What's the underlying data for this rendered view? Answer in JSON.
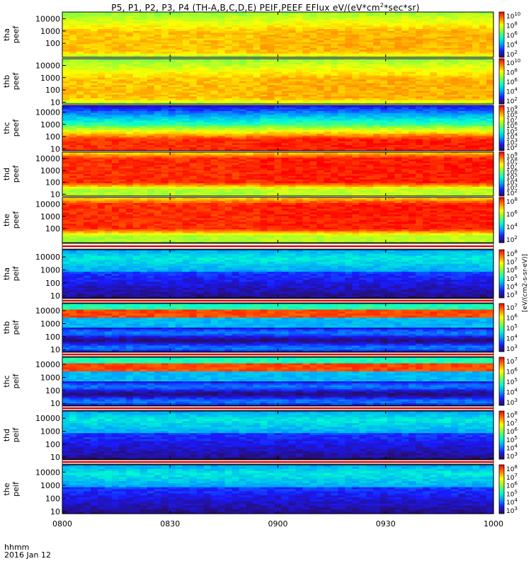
{
  "title_prefix": "P5, P1, P2, P3, P4 (TH-A,B,C,D,E) PEIF,PEEF EFlux eV/(eV*cm",
  "title_suffix": "*sec*sr)",
  "title_sup": "2",
  "chart_data": {
    "type": "heatmap",
    "x_ticks": [
      "0800",
      "0830",
      "0900",
      "0930",
      "1000"
    ],
    "x_range": [
      "08:00",
      "10:00"
    ],
    "x_axis_label": "hhmm",
    "date_label": "2016 Jan 12",
    "colorbar_label": "[eV/(cm2-s-sr-eV)]",
    "colormap": [
      "#2b0b50",
      "#1a1aff",
      "#00a0ff",
      "#00ffd0",
      "#80ff40",
      "#ffff00",
      "#ff8000",
      "#ff0000"
    ],
    "panels": [
      {
        "probe": "tha",
        "species": "peef",
        "y_ticks": [
          "10000",
          "1000",
          "100"
        ],
        "y_scale": "log",
        "cb_ticks": [
          "10^10",
          "10^8",
          "10^6",
          "10^4",
          "10^2"
        ],
        "intensity_profile": "electron-low"
      },
      {
        "probe": "thb",
        "species": "peef",
        "y_ticks": [
          "10000",
          "1000",
          "100",
          "10"
        ],
        "y_scale": "log",
        "cb_ticks": [
          "10^10",
          "10^8",
          "10^6",
          "10^4",
          "10^2"
        ],
        "intensity_profile": "electron-low"
      },
      {
        "probe": "thc",
        "species": "peef",
        "y_ticks": [
          "10000",
          "1000",
          "100",
          "10"
        ],
        "y_scale": "log",
        "cb_ticks": [
          "10^9",
          "10^8",
          "10^7",
          "10^6",
          "10^5",
          "10^4",
          "10^3",
          "10^2"
        ],
        "intensity_profile": "electron-mid"
      },
      {
        "probe": "thd",
        "species": "peef",
        "y_ticks": [
          "10000",
          "1000",
          "100",
          "10"
        ],
        "y_scale": "log",
        "cb_ticks": [
          "10^9",
          "10^8",
          "10^7",
          "10^6",
          "10^5",
          "10^4",
          "10^3",
          "10^2"
        ],
        "intensity_profile": "electron-high"
      },
      {
        "probe": "the",
        "species": "peef",
        "y_ticks": [
          "10000",
          "1000",
          "100"
        ],
        "y_scale": "log",
        "cb_ticks": [
          "10^8",
          "10^6",
          "10^4",
          "10^2"
        ],
        "intensity_profile": "electron-high"
      },
      {
        "probe": "tha",
        "species": "peif",
        "y_ticks": [
          "10000",
          "1000",
          "100",
          "10"
        ],
        "y_scale": "log",
        "cb_ticks": [
          "10^8",
          "10^7",
          "10^6",
          "10^5",
          "10^4",
          "10^3"
        ],
        "intensity_profile": "ion"
      },
      {
        "probe": "thb",
        "species": "peif",
        "y_ticks": [
          "10000",
          "1000",
          "100",
          "10"
        ],
        "y_scale": "log",
        "cb_ticks": [
          "10^7",
          "10^6",
          "10^5",
          "10^4",
          "10^3"
        ],
        "intensity_profile": "ion-band"
      },
      {
        "probe": "thc",
        "species": "peif",
        "y_ticks": [
          "10000",
          "1000",
          "100",
          "10"
        ],
        "y_scale": "log",
        "cb_ticks": [
          "10^7",
          "10^6",
          "10^5",
          "10^4",
          "10^3"
        ],
        "intensity_profile": "ion-band"
      },
      {
        "probe": "thd",
        "species": "peif",
        "y_ticks": [
          "10000",
          "1000",
          "100",
          "10"
        ],
        "y_scale": "log",
        "cb_ticks": [
          "10^8",
          "10^7",
          "10^6",
          "10^5",
          "10^4",
          "10^3"
        ],
        "intensity_profile": "ion"
      },
      {
        "probe": "the",
        "species": "peif",
        "y_ticks": [
          "10000",
          "1000",
          "100",
          "10"
        ],
        "y_scale": "log",
        "cb_ticks": [
          "10^8",
          "10^7",
          "10^6",
          "10^5",
          "10^4",
          "10^3"
        ],
        "intensity_profile": "ion"
      }
    ]
  }
}
